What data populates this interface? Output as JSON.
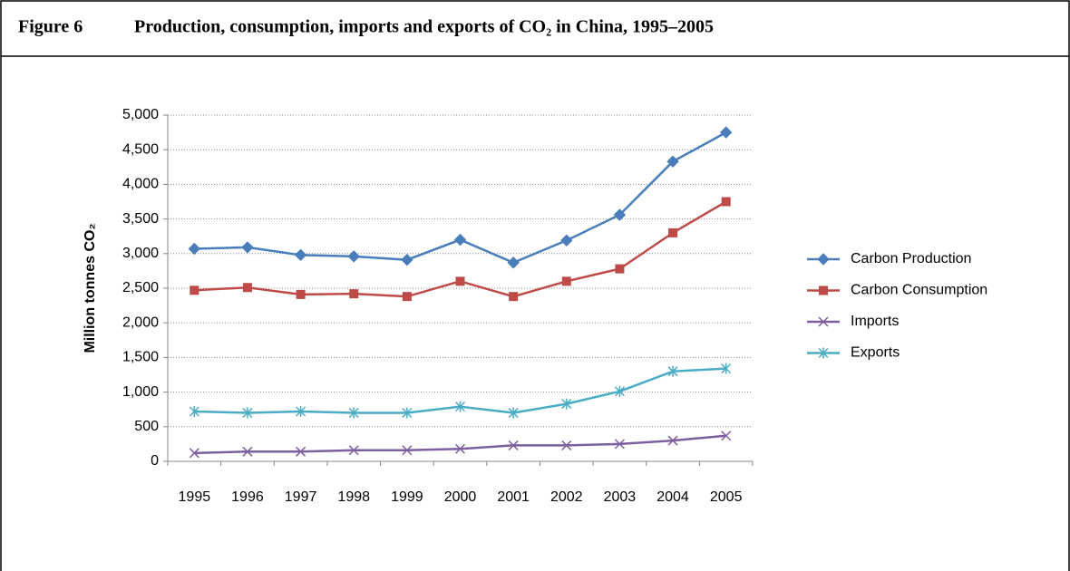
{
  "chart_data": {
    "type": "line",
    "figure_label": "Figure 6",
    "title": "Production, consumption, imports and exports of CO₂ in China, 1995–2005",
    "y_label": "Million tonnes CO₂",
    "categories": [
      "1995",
      "1996",
      "1997",
      "1998",
      "1999",
      "2000",
      "2001",
      "2002",
      "2003",
      "2004",
      "2005"
    ],
    "series": [
      {
        "name": "Carbon Production",
        "color": "#4a7ebb",
        "marker": "diamond",
        "values": [
          3070,
          3090,
          2980,
          2960,
          2910,
          3200,
          2870,
          3190,
          3560,
          4330,
          4750
        ]
      },
      {
        "name": "Carbon Consumption",
        "color": "#be4b48",
        "marker": "square",
        "values": [
          2470,
          2510,
          2410,
          2420,
          2380,
          2600,
          2380,
          2600,
          2780,
          3300,
          3750
        ]
      },
      {
        "name": "Imports",
        "color": "#7d5fa0",
        "marker": "x",
        "values": [
          120,
          140,
          140,
          160,
          160,
          180,
          230,
          230,
          250,
          300,
          370
        ]
      },
      {
        "name": "Exports",
        "color": "#4bacc6",
        "marker": "asterisk",
        "values": [
          720,
          700,
          720,
          700,
          700,
          790,
          700,
          830,
          1010,
          1300,
          1340
        ]
      }
    ],
    "ylim": [
      0,
      5000
    ],
    "yticks": [
      0,
      500,
      {
        "value": 1000,
        "label": "1,000"
      },
      {
        "value": 1500,
        "label": "1,500"
      },
      {
        "value": 2000,
        "label": "2,000"
      },
      {
        "value": 2500,
        "label": "2,500"
      },
      {
        "value": 3000,
        "label": "3,000"
      },
      {
        "value": 3500,
        "label": "3,500"
      },
      {
        "value": 4000,
        "label": "4,000"
      },
      {
        "value": 4500,
        "label": "4,500"
      },
      {
        "value": 5000,
        "label": "5,000"
      }
    ],
    "grid": true,
    "legend": "right"
  }
}
